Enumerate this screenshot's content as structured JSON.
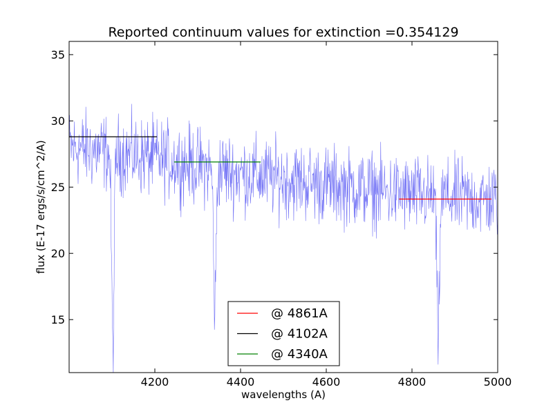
{
  "chart_data": {
    "type": "line",
    "title": "Reported continuum values for extinction =0.354129",
    "xlabel": "wavelengths (A)",
    "ylabel": "flux (E-17 ergs/s/cm^2/A)",
    "xlim": [
      4000,
      5000
    ],
    "ylim": [
      11,
      36
    ],
    "xticks": [
      4200,
      4400,
      4600,
      4800,
      5000
    ],
    "yticks": [
      15,
      20,
      25,
      30,
      35
    ],
    "grid": false,
    "legend_position": "bottom-center",
    "spectrum": {
      "color": "#6f6ff5",
      "baseline": [
        [
          4000,
          28.0
        ],
        [
          4200,
          27.2
        ],
        [
          4400,
          26.0
        ],
        [
          4600,
          25.2
        ],
        [
          4800,
          24.4
        ],
        [
          5000,
          24.0
        ]
      ],
      "absorption_lines": [
        {
          "center": 4102,
          "depth": 14.5,
          "width": 3
        },
        {
          "center": 4340,
          "depth": 10.5,
          "width": 3
        },
        {
          "center": 4861,
          "depth": 11.0,
          "width": 3
        }
      ],
      "noise": 1.8
    },
    "series": [
      {
        "name": "@ 4861A",
        "color": "#ff0000",
        "x": [
          4770,
          4985
        ],
        "y": [
          24.1,
          24.1
        ]
      },
      {
        "name": "@ 4102A",
        "color": "#000000",
        "x": [
          4000,
          4205
        ],
        "y": [
          28.8,
          28.8
        ]
      },
      {
        "name": "@ 4340A",
        "color": "#008000",
        "x": [
          4245,
          4447
        ],
        "y": [
          26.9,
          26.9
        ]
      }
    ]
  }
}
